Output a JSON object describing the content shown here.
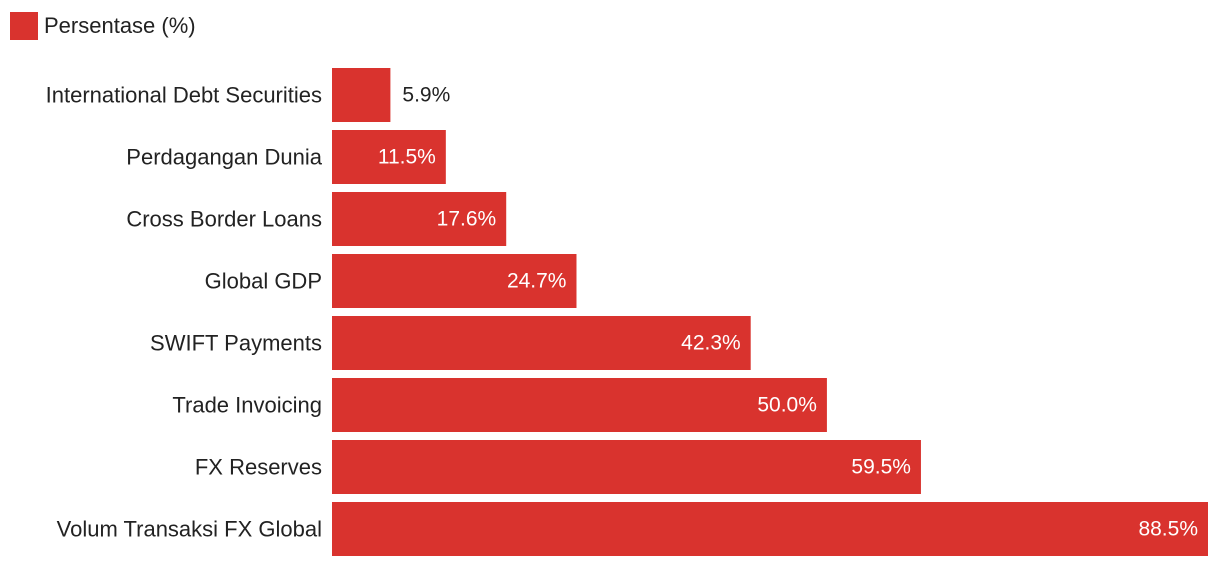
{
  "colors": {
    "bar": "#d9332e",
    "label_text": "#222222",
    "value_inside": "#ffffff",
    "value_outside": "#222222"
  },
  "legend": {
    "label": "Persentase (%)"
  },
  "chart_data": {
    "type": "bar",
    "orientation": "horizontal",
    "categories": [
      "International Debt Securities",
      "Perdagangan Dunia",
      "Cross Border Loans",
      "Global GDP",
      "SWIFT Payments",
      "Trade Invoicing",
      "FX Reserves",
      "Volum Transaksi FX Global"
    ],
    "series": [
      {
        "name": "Persentase (%)",
        "values": [
          5.9,
          11.5,
          17.6,
          24.7,
          42.3,
          50.0,
          59.5,
          88.5
        ],
        "labels": [
          "5.9%",
          "11.5%",
          "17.6%",
          "24.7%",
          "42.3%",
          "50.0%",
          "59.5%",
          "88.5%"
        ]
      }
    ],
    "xlim": [
      0,
      88.5
    ],
    "grid": false,
    "legend_position": "top-left"
  }
}
